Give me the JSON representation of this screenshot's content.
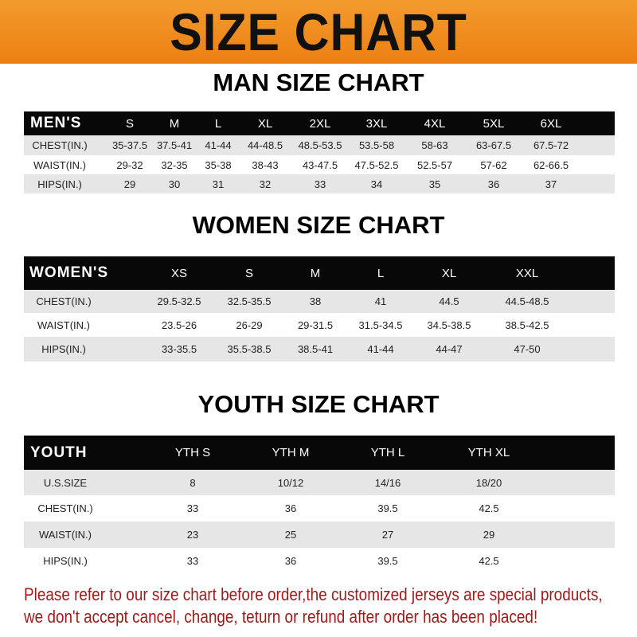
{
  "banner": {
    "title": "SIZE CHART",
    "color": "#ee8618"
  },
  "men": {
    "title": "MAN SIZE CHART",
    "header": [
      "MEN'S",
      "S",
      "M",
      "L",
      "XL",
      "2XL",
      "3XL",
      "4XL",
      "5XL",
      "6XL"
    ],
    "rows": [
      [
        "CHEST(IN.)",
        "35-37.5",
        "37.5-41",
        "41-44",
        "44-48.5",
        "48.5-53.5",
        "53.5-58",
        "58-63",
        "63-67.5",
        "67.5-72"
      ],
      [
        "WAIST(IN.)",
        "29-32",
        "32-35",
        "35-38",
        "38-43",
        "43-47.5",
        "47.5-52.5",
        "52.5-57",
        "57-62",
        "62-66.5"
      ],
      [
        "HIPS(IN.)",
        "29",
        "30",
        "31",
        "32",
        "33",
        "34",
        "35",
        "36",
        "37"
      ]
    ]
  },
  "women": {
    "title": "WOMEN SIZE CHART",
    "header": [
      "WOMEN'S",
      "XS",
      "S",
      "M",
      "L",
      "XL",
      "XXL"
    ],
    "rows": [
      [
        "CHEST(IN.)",
        "29.5-32.5",
        "32.5-35.5",
        "38",
        "41",
        "44.5",
        "44.5-48.5"
      ],
      [
        "WAIST(IN.)",
        "23.5-26",
        "26-29",
        "29-31.5",
        "31.5-34.5",
        "34.5-38.5",
        "38.5-42.5"
      ],
      [
        "HIPS(IN.)",
        "33-35.5",
        "35.5-38.5",
        "38.5-41",
        "41-44",
        "44-47",
        "47-50"
      ]
    ]
  },
  "youth": {
    "title": "YOUTH SIZE CHART",
    "header": [
      "YOUTH",
      "YTH S",
      "YTH M",
      "YTH L",
      "YTH XL"
    ],
    "rows": [
      [
        "U.S.SIZE",
        "8",
        "10/12",
        "14/16",
        "18/20"
      ],
      [
        "CHEST(IN.)",
        "33",
        "36",
        "39.5",
        "42.5"
      ],
      [
        "WAIST(IN.)",
        "23",
        "25",
        "27",
        "29"
      ],
      [
        "HIPS(IN.)",
        "33",
        "36",
        "39.5",
        "42.5"
      ]
    ]
  },
  "notice": {
    "line1": "Please refer to our size chart before order,the customized jerseys are special products,",
    "line2": "we don't accept cancel, change, teturn or refund after order has been placed!",
    "color": "#a01a1a"
  }
}
